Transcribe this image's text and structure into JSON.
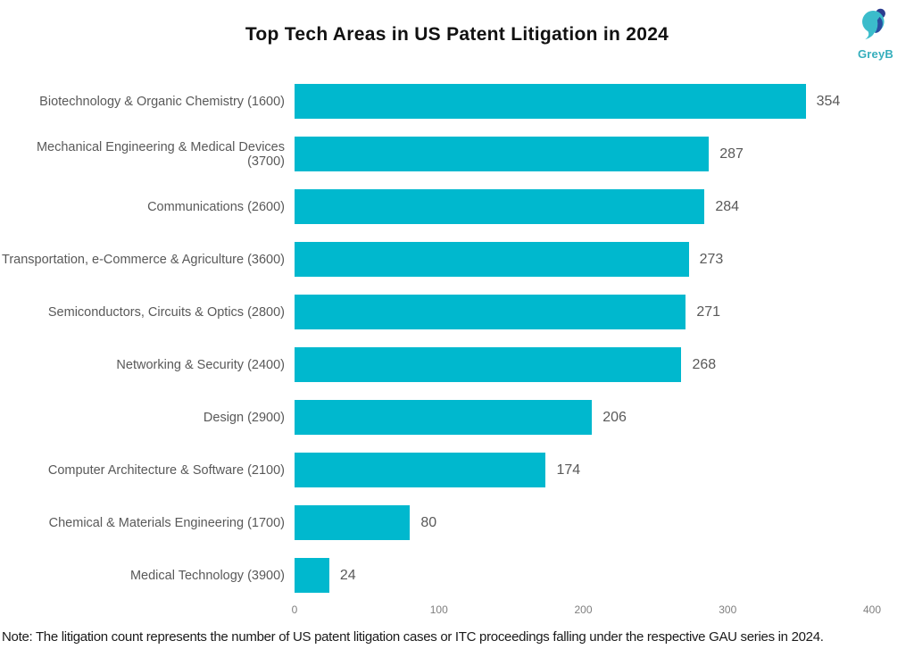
{
  "page": {
    "title": "Top Tech Areas in US Patent Litigation in 2024",
    "note": "Note: The litigation count represents the number of US patent litigation cases or ITC proceedings falling under the respective GAU series in 2024."
  },
  "logo": {
    "text": "GreyB"
  },
  "colors": {
    "bar": "#00b8ce",
    "category_label": "#595959",
    "value_label": "#595959",
    "axis_tick": "#7f7f7f",
    "title": "#111111",
    "note": "#1a1a1a",
    "logo_teal": "#35aebc",
    "logo_navy": "#2b4da0"
  },
  "chart_data": {
    "type": "bar",
    "orientation": "horizontal",
    "title": "Top Tech Areas in US Patent Litigation in 2024",
    "categories": [
      "Biotechnology & Organic Chemistry (1600)",
      "Mechanical Engineering & Medical Devices (3700)",
      "Communications (2600)",
      "Transportation, e-Commerce & Agriculture (3600)",
      "Semiconductors, Circuits & Optics (2800)",
      "Networking & Security (2400)",
      "Design (2900)",
      "Computer Architecture & Software (2100)",
      "Chemical & Materials Engineering (1700)",
      "Medical Technology (3900)"
    ],
    "values": [
      354,
      287,
      284,
      273,
      271,
      268,
      206,
      174,
      80,
      24
    ],
    "xlabel": "",
    "ylabel": "",
    "xlim": [
      0,
      400
    ],
    "x_ticks": [
      0,
      100,
      200,
      300,
      400
    ],
    "grid": false,
    "legend": false,
    "value_labels_shown": true
  }
}
